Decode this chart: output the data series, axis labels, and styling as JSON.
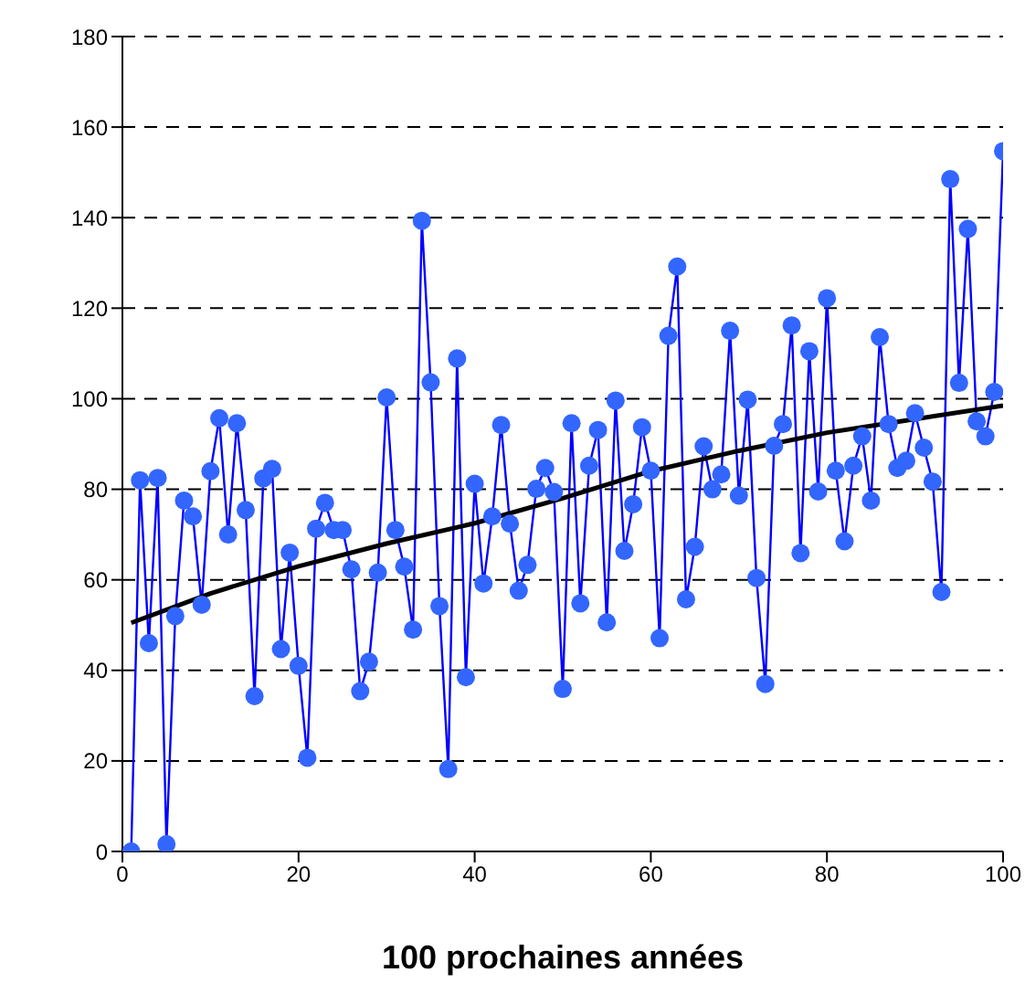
{
  "chart_data": {
    "type": "line",
    "xlabel": "100 prochaines années",
    "x": [
      1,
      2,
      3,
      4,
      5,
      6,
      7,
      8,
      9,
      10,
      11,
      12,
      13,
      14,
      15,
      16,
      17,
      18,
      19,
      20,
      21,
      22,
      23,
      24,
      25,
      26,
      27,
      28,
      29,
      30,
      31,
      32,
      33,
      34,
      35,
      36,
      37,
      38,
      39,
      40,
      41,
      42,
      43,
      44,
      45,
      46,
      47,
      48,
      49,
      50,
      51,
      52,
      53,
      54,
      55,
      56,
      57,
      58,
      59,
      60,
      61,
      62,
      63,
      64,
      65,
      66,
      67,
      68,
      69,
      70,
      71,
      72,
      73,
      74,
      75,
      76,
      77,
      78,
      79,
      80,
      81,
      82,
      83,
      84,
      85,
      86,
      87,
      88,
      89,
      90,
      91,
      92,
      93,
      94,
      95,
      96,
      97,
      98,
      99,
      100
    ],
    "series": [
      {
        "color": "#0000ff",
        "marker": "circle",
        "values": [
          0,
          82,
          46,
          82.5,
          1.6,
          52,
          77.5,
          74,
          54.5,
          84,
          95.7,
          70,
          94.6,
          75.4,
          34.3,
          82.4,
          84.5,
          44.7,
          66,
          41,
          20.7,
          71.3,
          77,
          71,
          71,
          62.3,
          35.4,
          41.9,
          61.6,
          100.3,
          71,
          62.9,
          49,
          139.3,
          103.6,
          54.2,
          18.2,
          108.9,
          38.5,
          81.2,
          59.2,
          74,
          94.2,
          72.4,
          57.6,
          63.3,
          80.1,
          84.7,
          79.4,
          35.9,
          94.6,
          54.8,
          85.2,
          93.1,
          50.6,
          99.6,
          66.4,
          76.7,
          93.7,
          84.1,
          47.1,
          113.9,
          129.2,
          55.7,
          67.3,
          89.5,
          80,
          83.3,
          115,
          78.6,
          99.8,
          60.4,
          37,
          89.6,
          94.4,
          116.2,
          65.9,
          110.5,
          79.5,
          122.2,
          84.1,
          68.5,
          85.2,
          91.7,
          77.5,
          113.6,
          94.4,
          84.7,
          86.3,
          96.8,
          89.2,
          81.7,
          57.3,
          148.5,
          103.5,
          137.5,
          95,
          91.7,
          101.5,
          154.7
        ]
      },
      {
        "type": "line",
        "color": "#000000",
        "marker": "none",
        "x": [
          1,
          10,
          20,
          30,
          40,
          50,
          60,
          70,
          80,
          90,
          100
        ],
        "values": [
          50.5,
          57,
          63,
          68,
          72.5,
          78,
          84,
          88.5,
          92.5,
          95.5,
          98.5
        ]
      }
    ],
    "xlim": [
      0,
      100
    ],
    "xticks": [
      0,
      20,
      40,
      60,
      80,
      100
    ],
    "ylim": [
      0,
      180
    ],
    "yticks": [
      0,
      20,
      40,
      60,
      80,
      100,
      120,
      140,
      160,
      180
    ],
    "grid": "y",
    "line_style": "solid"
  }
}
